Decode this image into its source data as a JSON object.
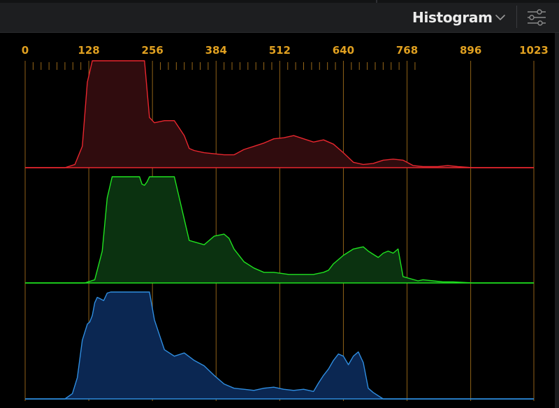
{
  "header": {
    "title": "Histogram",
    "dropdown_icon": "chevron-down-icon",
    "settings_icon": "sliders-icon"
  },
  "colors": {
    "background": "#000000",
    "header_bg": "#1d1e20",
    "grid": "#a8731c",
    "tick_label": "#e0a020",
    "red": "#e8262e",
    "red_fill": "#300c0e",
    "green": "#1fe21f",
    "green_fill": "#0b3210",
    "blue": "#2f8de0",
    "blue_fill": "#0b2752"
  },
  "chart_data": {
    "type": "area",
    "xlim": [
      0,
      1023
    ],
    "ticks": [
      0,
      128,
      256,
      384,
      512,
      640,
      768,
      896,
      1023
    ],
    "tick_labels": [
      "0",
      "128",
      "256",
      "384",
      "512",
      "640",
      "768",
      "896",
      "1023"
    ],
    "ylim": [
      0,
      100
    ],
    "series": [
      {
        "color": "red",
        "x": [
          0,
          80,
          100,
          115,
          125,
          135,
          240,
          250,
          260,
          280,
          300,
          320,
          330,
          340,
          360,
          380,
          400,
          420,
          440,
          460,
          480,
          500,
          520,
          540,
          560,
          580,
          600,
          620,
          640,
          660,
          680,
          700,
          720,
          740,
          760,
          780,
          800,
          830,
          850,
          870,
          900,
          950,
          1023
        ],
        "values": [
          0,
          0,
          3,
          20,
          80,
          100,
          100,
          47,
          42,
          44,
          44,
          30,
          18,
          16,
          14,
          13,
          12,
          12,
          17,
          20,
          23,
          27,
          28,
          30,
          27,
          24,
          26,
          22,
          14,
          5,
          3,
          4,
          7,
          8,
          7,
          2,
          1,
          1,
          2,
          1,
          0,
          0,
          0
        ]
      },
      {
        "color": "green",
        "x": [
          0,
          120,
          140,
          155,
          165,
          175,
          180,
          230,
          235,
          240,
          245,
          250,
          255,
          300,
          310,
          320,
          330,
          360,
          380,
          400,
          410,
          420,
          440,
          460,
          480,
          500,
          530,
          560,
          580,
          600,
          610,
          620,
          640,
          660,
          680,
          690,
          700,
          710,
          720,
          730,
          740,
          750,
          760,
          790,
          800,
          840,
          860,
          900,
          1023
        ],
        "values": [
          0,
          0,
          3,
          30,
          80,
          100,
          100,
          100,
          93,
          92,
          95,
          100,
          100,
          100,
          80,
          60,
          40,
          36,
          44,
          46,
          42,
          32,
          20,
          14,
          10,
          10,
          8,
          8,
          8,
          10,
          12,
          18,
          26,
          32,
          34,
          30,
          27,
          24,
          28,
          30,
          28,
          32,
          6,
          2,
          3,
          1,
          1,
          0,
          0
        ]
      },
      {
        "color": "blue",
        "x": [
          0,
          80,
          95,
          105,
          115,
          125,
          130,
          135,
          140,
          145,
          150,
          158,
          165,
          172,
          180,
          250,
          260,
          270,
          280,
          300,
          320,
          340,
          360,
          380,
          400,
          420,
          440,
          460,
          480,
          500,
          520,
          540,
          560,
          580,
          590,
          600,
          610,
          620,
          630,
          640,
          650,
          660,
          670,
          680,
          690,
          700,
          720,
          760,
          1023
        ],
        "values": [
          0,
          0,
          5,
          20,
          55,
          70,
          72,
          78,
          90,
          95,
          94,
          92,
          99,
          100,
          100,
          100,
          74,
          60,
          46,
          40,
          43,
          36,
          31,
          22,
          14,
          10,
          9,
          8,
          10,
          11,
          9,
          8,
          9,
          7,
          15,
          22,
          28,
          36,
          42,
          40,
          32,
          40,
          44,
          34,
          10,
          6,
          0,
          0,
          0
        ]
      }
    ],
    "title": "",
    "xlabel": "",
    "ylabel": ""
  }
}
